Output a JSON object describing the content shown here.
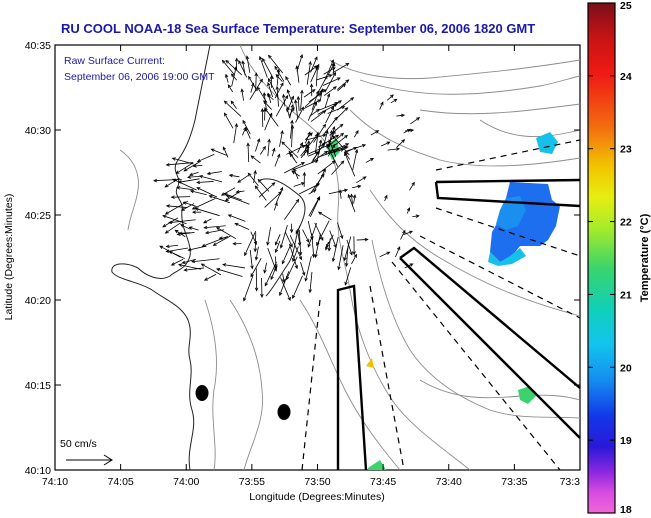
{
  "title": "RU COOL  NOAA-18  Sea Surface Temperature:  September 06, 2006 1820 GMT",
  "inset": {
    "line1": "Raw Surface Current:",
    "line2": "September 06, 2006 19:00 GMT"
  },
  "axes": {
    "xlabel": "Longitude (Degrees:Minutes)",
    "ylabel": "Latitude (Degrees:Minutes)",
    "xticks": [
      "74:10",
      "74:05",
      "74:00",
      "73:55",
      "73:50",
      "73:45",
      "73:40",
      "73:35",
      "73:3"
    ],
    "yticks": [
      "40:35",
      "40:30",
      "40:25",
      "40:20",
      "40:15",
      "40:10"
    ]
  },
  "scale": {
    "label": "50 cm/s"
  },
  "colorbar": {
    "label": "Temperature (°C)",
    "ticks": [
      "25",
      "24",
      "23",
      "22",
      "21",
      "20",
      "19",
      "18"
    ],
    "min": 18,
    "max": 25
  },
  "colors": {
    "text_blue": "#1a1aa6",
    "contour": "#8c8c8c",
    "sst_blue": "#1e6ef0",
    "sst_cyan": "#17c0e8",
    "sst_green": "#3cd26e"
  }
}
